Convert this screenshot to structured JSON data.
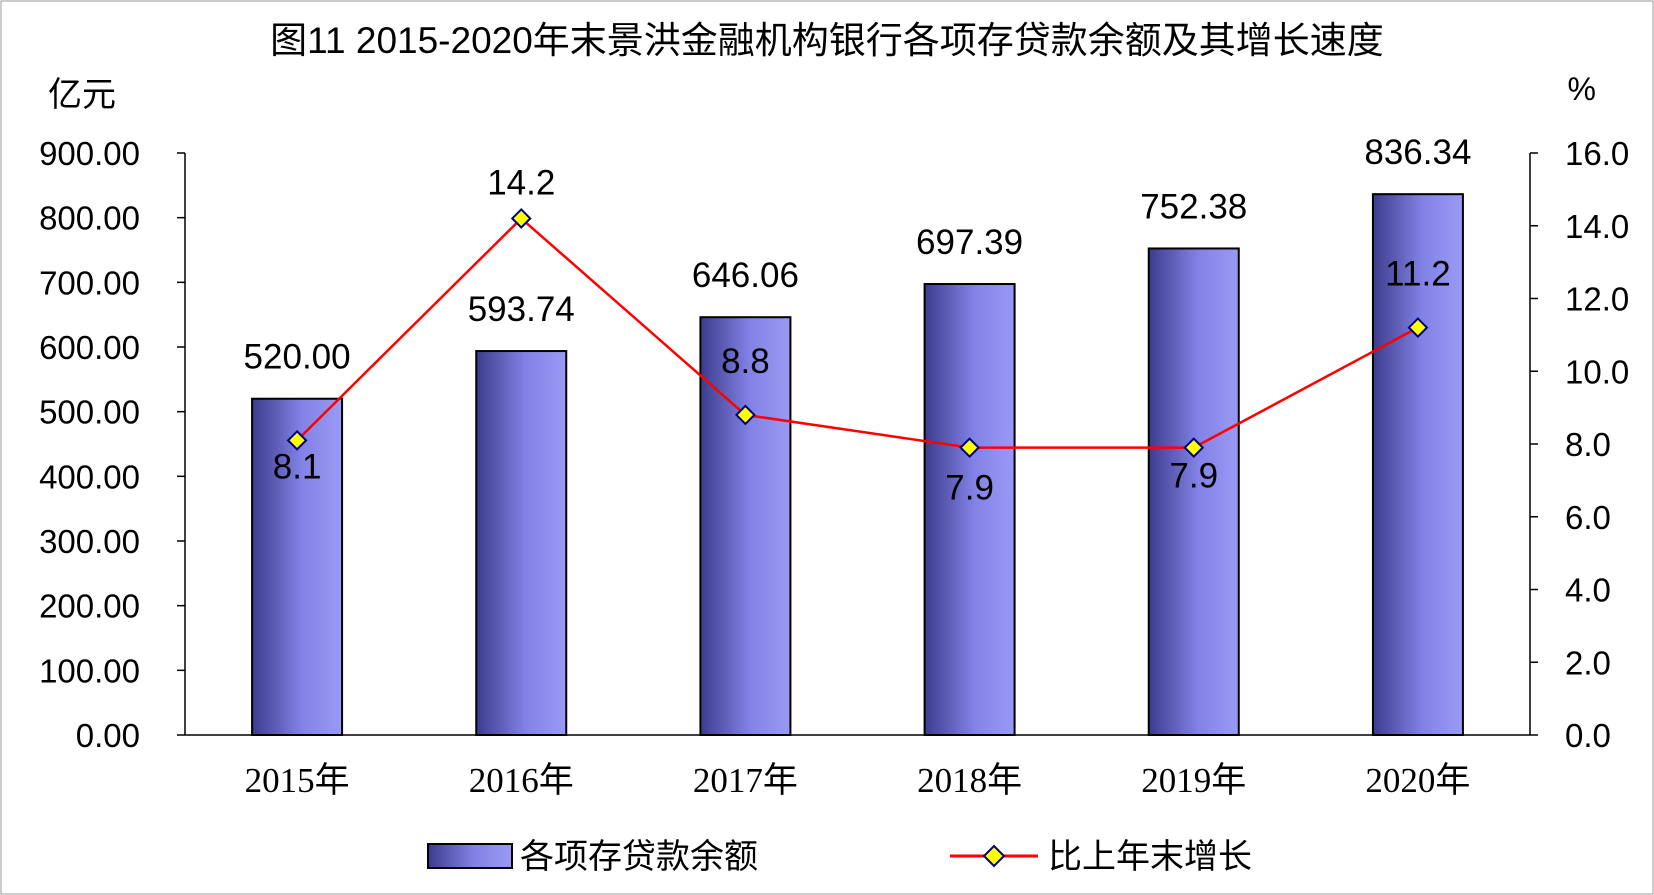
{
  "chart_data": {
    "type": "bar",
    "title": "图11  2015-2020年末景洪金融机构银行各项存贷款余额及其增长速度",
    "ylabel": "亿元",
    "y2label": "%",
    "categories": [
      "2015年",
      "2016年",
      "2017年",
      "2018年",
      "2019年",
      "2020年"
    ],
    "ylim": [
      0,
      900
    ],
    "y_ticks": [
      "0.00",
      "100.00",
      "200.00",
      "300.00",
      "400.00",
      "500.00",
      "600.00",
      "700.00",
      "800.00",
      "900.00"
    ],
    "y2lim": [
      0,
      16
    ],
    "y2_ticks": [
      "0.0",
      "2.0",
      "4.0",
      "6.0",
      "8.0",
      "10.0",
      "12.0",
      "14.0",
      "16.0"
    ],
    "legend_position": "bottom",
    "grid": false,
    "series": [
      {
        "name": "各项存贷款余额",
        "type": "bar",
        "axis": "left",
        "values": [
          520.0,
          593.74,
          646.06,
          697.39,
          752.38,
          836.34
        ],
        "labels": [
          "520.00",
          "593.74",
          "646.06",
          "697.39",
          "752.38",
          "836.34"
        ],
        "color": "#8c8cf0"
      },
      {
        "name": "比上年末增长",
        "type": "line",
        "axis": "right",
        "values": [
          8.1,
          14.2,
          8.8,
          7.9,
          7.9,
          11.2
        ],
        "labels": [
          "8.1",
          "14.2",
          "8.8",
          "7.9",
          "7.9",
          "11.2"
        ],
        "color": "#ff0000",
        "marker_color": "#ffff00"
      }
    ]
  }
}
